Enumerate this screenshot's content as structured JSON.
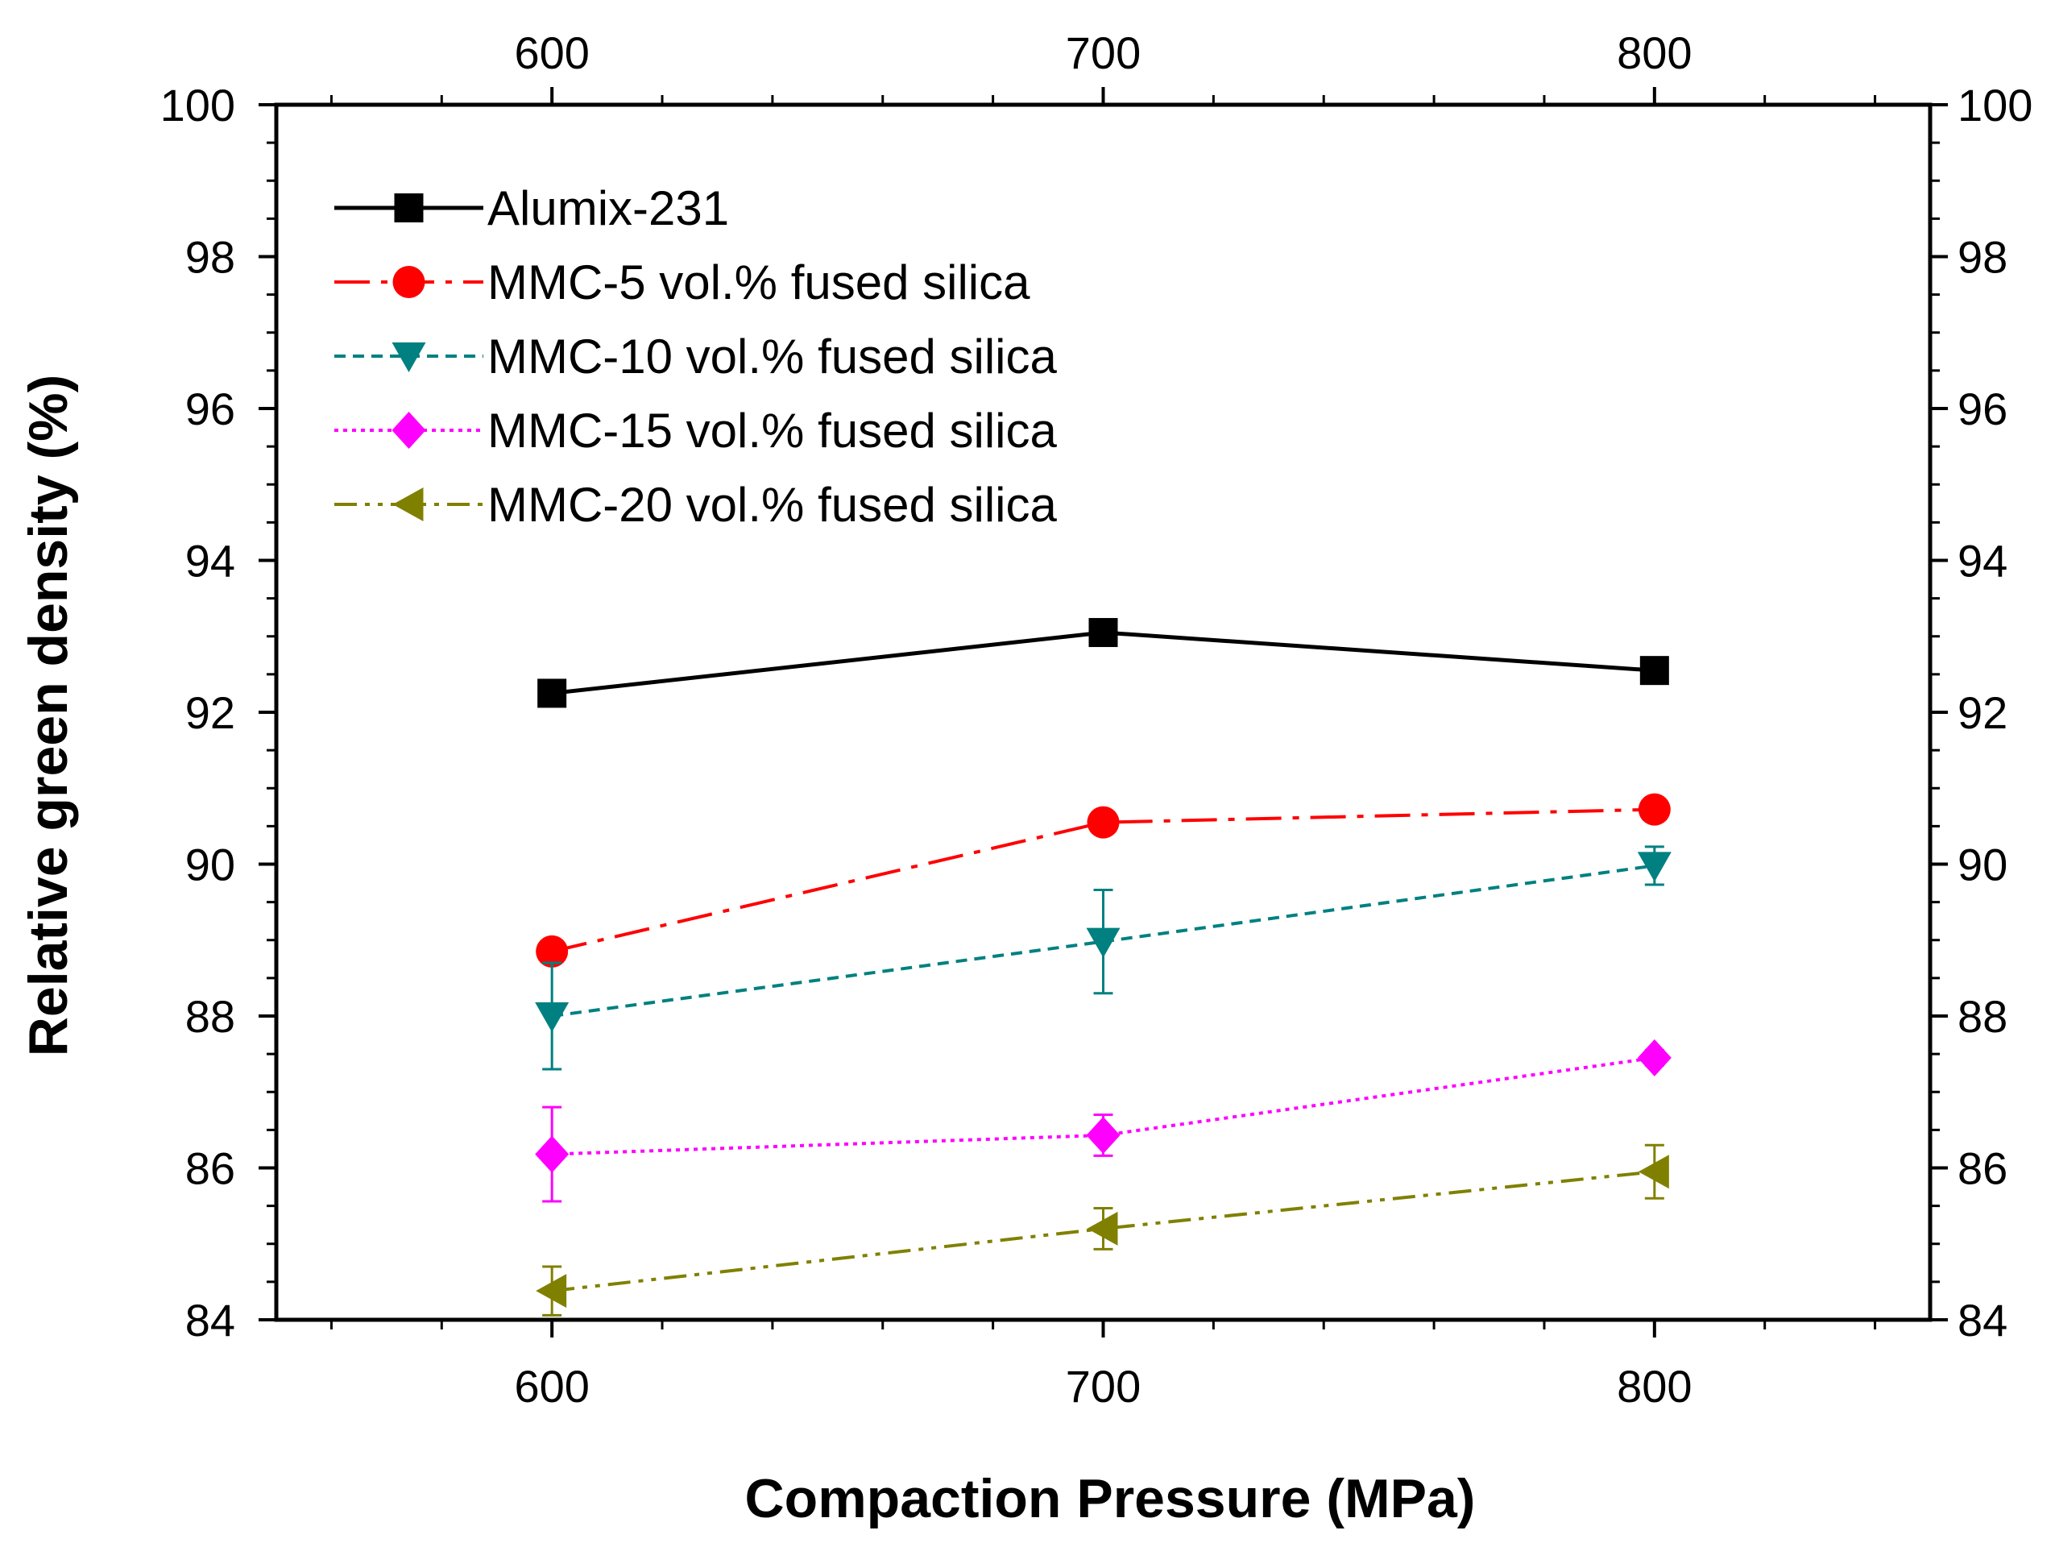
{
  "chart_data": {
    "type": "line",
    "xlabel": "Compaction Pressure (MPa)",
    "ylabel": "Relative green density (%)",
    "xlim": [
      550,
      850
    ],
    "ylim": [
      84,
      100
    ],
    "x_ticks": [
      600,
      700,
      800
    ],
    "x_minor_ticks": [
      560,
      580,
      620,
      640,
      660,
      680,
      720,
      740,
      760,
      780,
      820,
      840
    ],
    "y_ticks": [
      84,
      86,
      88,
      90,
      92,
      94,
      96,
      98,
      100
    ],
    "y_minor_step": 0.5,
    "top_axis_labels": true,
    "right_axis_labels": true,
    "grid": false,
    "legend_position": "top-left",
    "series": [
      {
        "name": "Alumix-231",
        "x": [
          600,
          700,
          800
        ],
        "values": [
          92.25,
          93.05,
          92.55
        ],
        "errors": [
          0,
          0,
          0
        ],
        "color": "#000000",
        "marker": "square",
        "dash": "solid"
      },
      {
        "name": "MMC-5 vol.% fused silica",
        "x": [
          600,
          700,
          800
        ],
        "values": [
          88.85,
          90.55,
          90.72
        ],
        "errors": [
          0,
          0,
          0
        ],
        "color": "#ff0000",
        "marker": "circle",
        "dash": "dashdot"
      },
      {
        "name": "MMC-10 vol.% fused silica",
        "x": [
          600,
          700,
          800
        ],
        "values": [
          88.0,
          88.98,
          89.98
        ],
        "errors": [
          0.7,
          0.68,
          0.25
        ],
        "color": "#008080",
        "marker": "triangle-down",
        "dash": "dash"
      },
      {
        "name": "MMC-15 vol.% fused silica",
        "x": [
          600,
          700,
          800
        ],
        "values": [
          86.18,
          86.43,
          87.45
        ],
        "errors": [
          0.62,
          0.27,
          0.1
        ],
        "color": "#ff00ff",
        "marker": "diamond",
        "dash": "dot"
      },
      {
        "name": "MMC-20 vol.% fused silica",
        "x": [
          600,
          700,
          800
        ],
        "values": [
          84.38,
          85.2,
          85.95
        ],
        "errors": [
          0.32,
          0.27,
          0.35
        ],
        "color": "#808000",
        "marker": "triangle-left",
        "dash": "dashdotdot"
      }
    ]
  }
}
